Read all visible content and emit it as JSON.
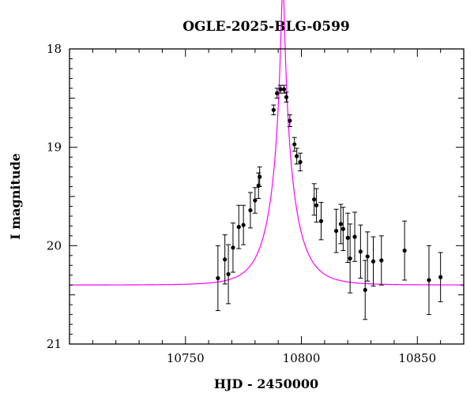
{
  "chart_data": {
    "type": "scatter",
    "title": "OGLE-2025-BLG-0599",
    "xlabel": "HJD - 2450000",
    "ylabel": "I magnitude",
    "xlim": [
      10700,
      10870
    ],
    "ylim": [
      21,
      18
    ],
    "y_inverted": true,
    "grid": false,
    "x_ticks": [
      10750,
      10800,
      10850
    ],
    "y_ticks": [
      18,
      19,
      20,
      21
    ],
    "colors": {
      "points": "#000000",
      "model": "#ff00ff",
      "frame": "#000000"
    },
    "model": {
      "type": "microlensing",
      "t0": 10792,
      "u0": 0.06,
      "tE": 11.0,
      "baseline": 20.4,
      "color": "#ff00ff"
    },
    "series": [
      {
        "points": [
          {
            "x": 10764,
            "y": 20.33,
            "err": 0.33
          },
          {
            "x": 10767,
            "y": 20.14,
            "err": 0.25
          },
          {
            "x": 10768.5,
            "y": 20.29,
            "err": 0.3
          },
          {
            "x": 10770.5,
            "y": 20.02,
            "err": 0.25
          },
          {
            "x": 10773,
            "y": 19.81,
            "err": 0.22
          },
          {
            "x": 10775,
            "y": 19.79,
            "err": 0.2
          },
          {
            "x": 10778,
            "y": 19.64,
            "err": 0.18
          },
          {
            "x": 10780,
            "y": 19.54,
            "err": 0.13
          },
          {
            "x": 10781.5,
            "y": 19.39,
            "err": 0.13
          },
          {
            "x": 10782,
            "y": 19.3,
            "err": 0.1
          },
          {
            "x": 10788,
            "y": 18.62,
            "err": 0.05
          },
          {
            "x": 10789.5,
            "y": 18.45,
            "err": 0.05
          },
          {
            "x": 10791,
            "y": 18.41,
            "err": 0.04
          },
          {
            "x": 10792.5,
            "y": 18.41,
            "err": 0.04
          },
          {
            "x": 10793.5,
            "y": 18.49,
            "err": 0.05
          },
          {
            "x": 10795,
            "y": 18.73,
            "err": 0.06
          },
          {
            "x": 10797,
            "y": 18.97,
            "err": 0.07
          },
          {
            "x": 10798,
            "y": 19.09,
            "err": 0.08
          },
          {
            "x": 10799.5,
            "y": 19.15,
            "err": 0.09
          },
          {
            "x": 10805.5,
            "y": 19.53,
            "err": 0.16
          },
          {
            "x": 10806.5,
            "y": 19.59,
            "err": 0.17
          },
          {
            "x": 10808.5,
            "y": 19.75,
            "err": 0.19
          },
          {
            "x": 10815,
            "y": 19.85,
            "err": 0.22
          },
          {
            "x": 10817,
            "y": 19.78,
            "err": 0.2
          },
          {
            "x": 10818,
            "y": 19.83,
            "err": 0.22
          },
          {
            "x": 10820,
            "y": 19.92,
            "err": 0.25
          },
          {
            "x": 10821,
            "y": 20.13,
            "err": 0.35
          },
          {
            "x": 10823,
            "y": 19.91,
            "err": 0.25
          },
          {
            "x": 10825.5,
            "y": 20.06,
            "err": 0.27
          },
          {
            "x": 10827.5,
            "y": 20.45,
            "err": 0.3
          },
          {
            "x": 10828.5,
            "y": 20.11,
            "err": 0.25
          },
          {
            "x": 10831,
            "y": 20.16,
            "err": 0.25
          },
          {
            "x": 10834.5,
            "y": 20.15,
            "err": 0.25
          },
          {
            "x": 10844.5,
            "y": 20.05,
            "err": 0.3
          },
          {
            "x": 10855,
            "y": 20.35,
            "err": 0.35
          },
          {
            "x": 10860,
            "y": 20.32,
            "err": 0.25
          }
        ]
      }
    ]
  }
}
